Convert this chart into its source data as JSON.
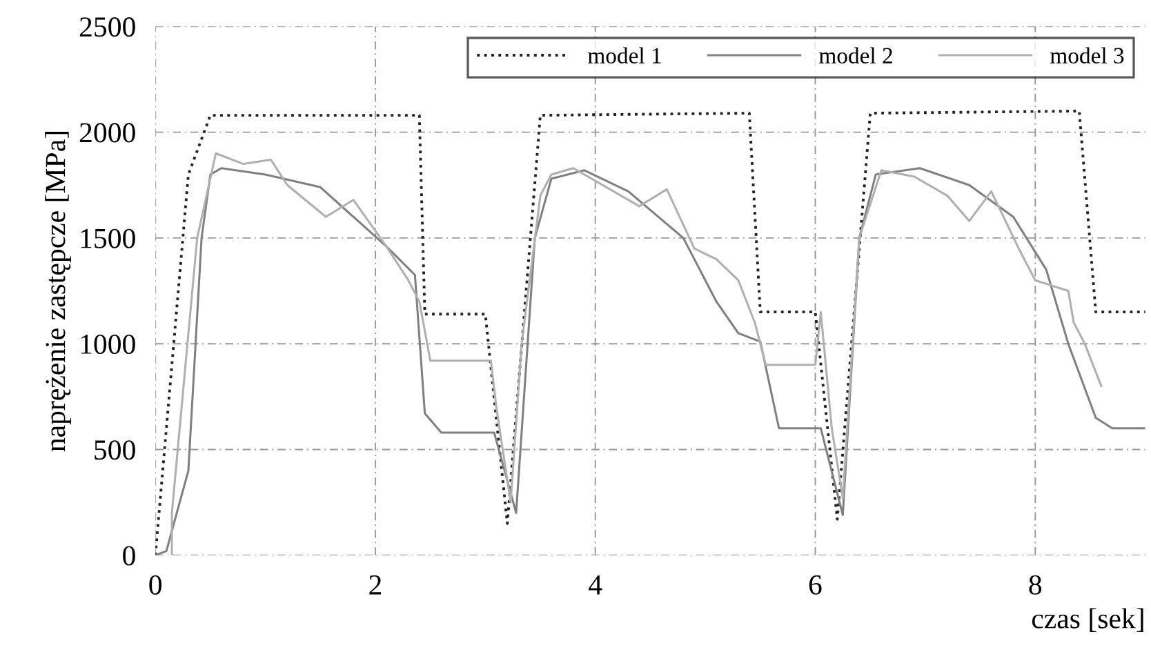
{
  "chart_data": {
    "type": "line",
    "xlabel": "czas [sek]",
    "ylabel": "naprężenie zastępcze [MPa]",
    "xlim": [
      0,
      9
    ],
    "ylim": [
      0,
      2500
    ],
    "xticks": [
      0,
      2,
      4,
      6,
      8
    ],
    "yticks": [
      0,
      500,
      1000,
      1500,
      2000,
      2500
    ],
    "grid": true,
    "legend": "top right",
    "series": [
      {
        "name": "model 1",
        "color": "#222222",
        "line_style": "dotted",
        "x": [
          0,
          0.3,
          0.5,
          2.4,
          2.45,
          3.0,
          3.2,
          3.5,
          5.4,
          5.5,
          6.0,
          6.2,
          6.5,
          8.4,
          8.55,
          9.0
        ],
        "values": [
          0,
          1800,
          2080,
          2080,
          1140,
          1140,
          150,
          2080,
          2090,
          1150,
          1150,
          170,
          2090,
          2100,
          1150,
          1150
        ]
      },
      {
        "name": "model 2",
        "color": "#808080",
        "line_style": "solid",
        "x": [
          0,
          0.1,
          0.3,
          0.42,
          0.5,
          0.6,
          1.0,
          1.5,
          1.8,
          2.1,
          2.36,
          2.45,
          2.6,
          3.08,
          3.28,
          3.45,
          3.6,
          3.9,
          4.3,
          4.8,
          5.1,
          5.3,
          5.5,
          5.67,
          6.05,
          6.25,
          6.4,
          6.55,
          6.95,
          7.4,
          7.8,
          8.1,
          8.3,
          8.55,
          8.7,
          9.0
        ],
        "values": [
          0,
          20,
          400,
          1500,
          1800,
          1830,
          1800,
          1740,
          1600,
          1460,
          1325,
          670,
          580,
          580,
          200,
          1500,
          1780,
          1820,
          1720,
          1500,
          1200,
          1050,
          1010,
          600,
          600,
          190,
          1500,
          1800,
          1830,
          1750,
          1600,
          1350,
          1000,
          650,
          600,
          600
        ]
      },
      {
        "name": "model 3",
        "color": "#b0b0b0",
        "line_style": "solid",
        "x": [
          0.15,
          0.15,
          0.38,
          0.55,
          0.8,
          1.05,
          1.2,
          1.55,
          1.8,
          2.1,
          2.3,
          2.4,
          2.5,
          3.05,
          3.1,
          3.23,
          3.33,
          3.5,
          3.6,
          3.8,
          4.4,
          4.65,
          4.9,
          5.1,
          5.3,
          5.45,
          5.55,
          6.0,
          6.05,
          6.15,
          6.25,
          6.4,
          6.6,
          6.9,
          7.2,
          7.4,
          7.6,
          7.85,
          8.0,
          8.3,
          8.35,
          8.45,
          8.6
        ],
        "values": [
          0,
          200,
          1500,
          1900,
          1850,
          1870,
          1750,
          1600,
          1680,
          1460,
          1300,
          1200,
          920,
          920,
          700,
          250,
          1000,
          1700,
          1800,
          1830,
          1650,
          1730,
          1450,
          1400,
          1300,
          1100,
          900,
          900,
          1150,
          600,
          270,
          1500,
          1820,
          1790,
          1700,
          1580,
          1720,
          1450,
          1300,
          1250,
          1100,
          1000,
          800
        ]
      }
    ]
  }
}
